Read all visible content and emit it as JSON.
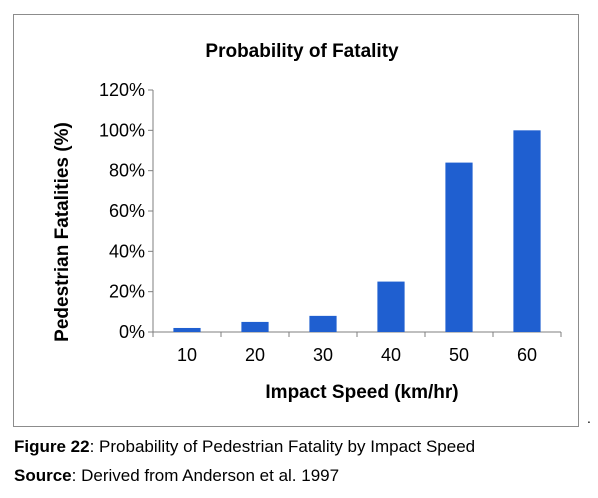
{
  "chart_data": {
    "type": "bar",
    "title": "Probability of Fatality",
    "xlabel": "Impact Speed (km/hr)",
    "ylabel": "Pedestrian Fatalities (%)",
    "categories": [
      "10",
      "20",
      "30",
      "40",
      "50",
      "60"
    ],
    "values": [
      2,
      5,
      8,
      25,
      84,
      100
    ],
    "ylim": [
      0,
      120
    ],
    "yticks": [
      "0%",
      "20%",
      "40%",
      "60%",
      "80%",
      "100%",
      "120%"
    ],
    "bar_color": "#1f5fd0",
    "grid": false,
    "legend": "none"
  },
  "caption": {
    "figure_label": "Figure 22",
    "figure_text": ": Probability of Pedestrian Fatality by Impact Speed",
    "source_label": "Source",
    "source_text": ": Derived from Anderson et al. 1997",
    "trailing_mark": "."
  }
}
